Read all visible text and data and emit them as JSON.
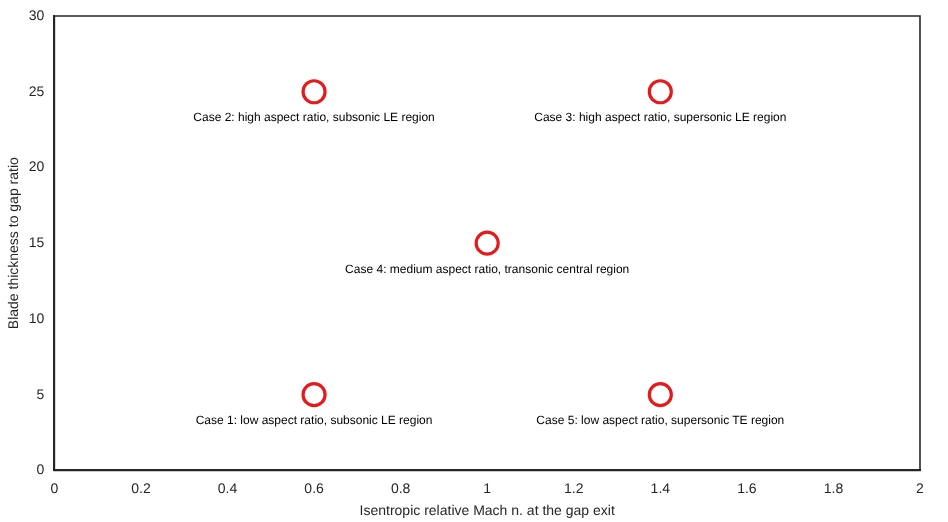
{
  "chart_data": {
    "type": "scatter",
    "xlabel": "Isentropic relative Mach n. at the gap exit",
    "ylabel": "Blade thickness to gap ratio",
    "x": [
      0.6,
      1.4,
      1,
      0.6,
      1.4
    ],
    "series": [
      {
        "color": "#e41a1c",
        "values": [
          25,
          25,
          15,
          5,
          5
        ]
      }
    ],
    "xlim": [
      0,
      2
    ],
    "xticks": [
      0,
      0.2,
      0.4,
      0.6,
      0.8,
      1,
      1.2,
      1.4,
      1.6,
      1.8,
      2
    ],
    "ylim": [
      0,
      30
    ],
    "yticks": [
      0,
      5,
      10,
      15,
      20,
      25,
      30
    ],
    "marker": "circle",
    "grid": false,
    "legend": false,
    "annotations": [
      {
        "text": "Case 2: high aspect ratio, subsonic LE region",
        "x": 0.6,
        "y": 25
      },
      {
        "text": "Case 3: high aspect ratio, supersonic LE region",
        "x": 1.4,
        "y": 25
      },
      {
        "text": "Case 4: medium aspect ratio, transonic central region",
        "x": 1,
        "y": 15
      },
      {
        "text": "Case 1: low aspect ratio, subsonic LE region",
        "x": 0.6,
        "y": 5
      },
      {
        "text": "Case 5: low aspect ratio, supersonic TE region",
        "x": 1.4,
        "y": 5
      }
    ]
  }
}
